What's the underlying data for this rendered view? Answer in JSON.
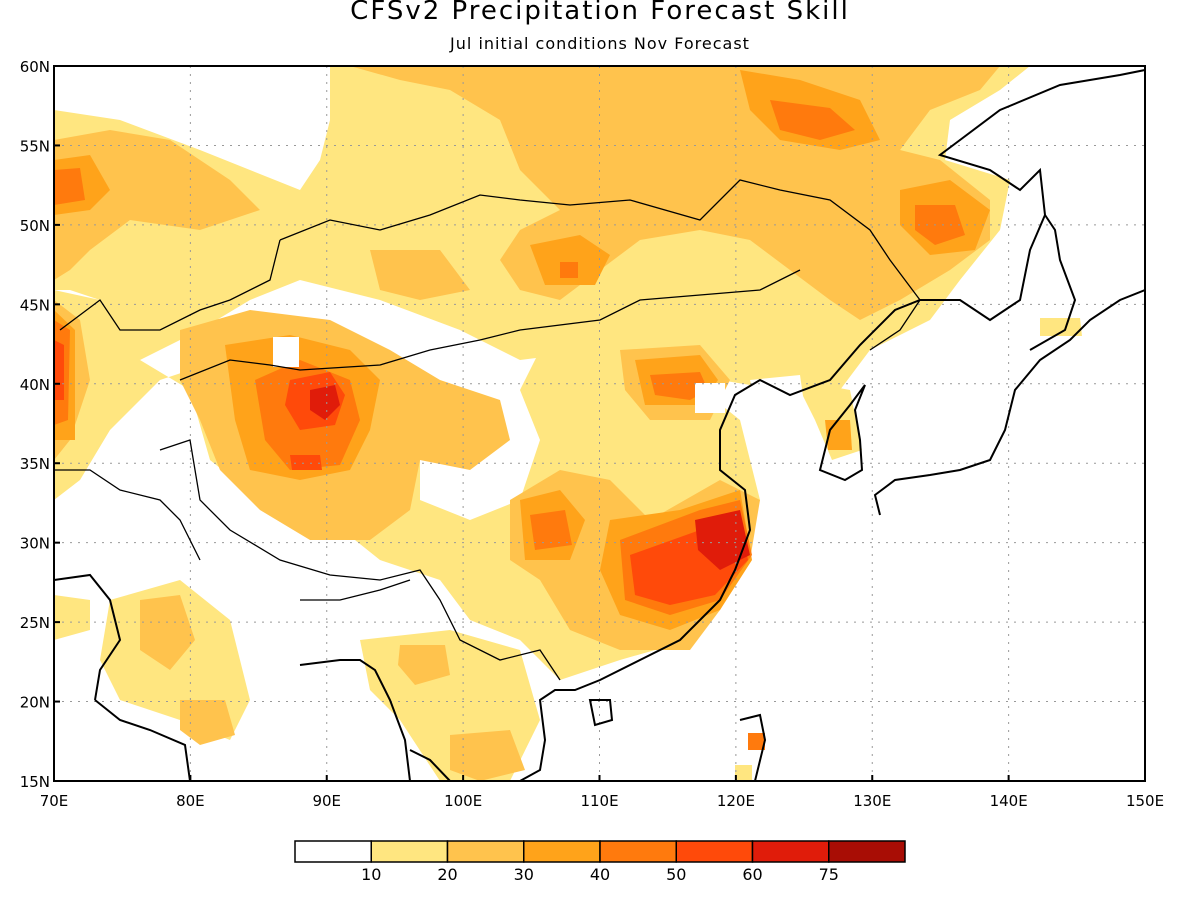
{
  "title": "CFSv2 Precipitation Forecast Skill",
  "subtitle": "Jul initial conditions  Nov Forecast",
  "map": {
    "lon_range": [
      70,
      150
    ],
    "lat_range": [
      15,
      60
    ],
    "x_ticks": [
      {
        "lon": 70,
        "label": "70E"
      },
      {
        "lon": 80,
        "label": "80E"
      },
      {
        "lon": 90,
        "label": "90E"
      },
      {
        "lon": 100,
        "label": "100E"
      },
      {
        "lon": 110,
        "label": "110E"
      },
      {
        "lon": 120,
        "label": "120E"
      },
      {
        "lon": 130,
        "label": "130E"
      },
      {
        "lon": 140,
        "label": "140E"
      },
      {
        "lon": 150,
        "label": "150E"
      }
    ],
    "y_ticks": [
      {
        "lat": 60,
        "label": "60N"
      },
      {
        "lat": 55,
        "label": "55N"
      },
      {
        "lat": 50,
        "label": "50N"
      },
      {
        "lat": 45,
        "label": "45N"
      },
      {
        "lat": 40,
        "label": "40N"
      },
      {
        "lat": 35,
        "label": "35N"
      },
      {
        "lat": 30,
        "label": "30N"
      },
      {
        "lat": 25,
        "label": "25N"
      },
      {
        "lat": 20,
        "label": "20N"
      },
      {
        "lat": 15,
        "label": "15N"
      }
    ],
    "grid": true
  },
  "colorbar": {
    "colors": [
      "#ffffff",
      "#ffe680",
      "#ffc34d",
      "#ffa31a",
      "#ff7a0d",
      "#ff4a0a",
      "#e01c0a",
      "#a80d05"
    ],
    "labels": [
      "10",
      "20",
      "30",
      "40",
      "50",
      "60",
      "75"
    ]
  }
}
